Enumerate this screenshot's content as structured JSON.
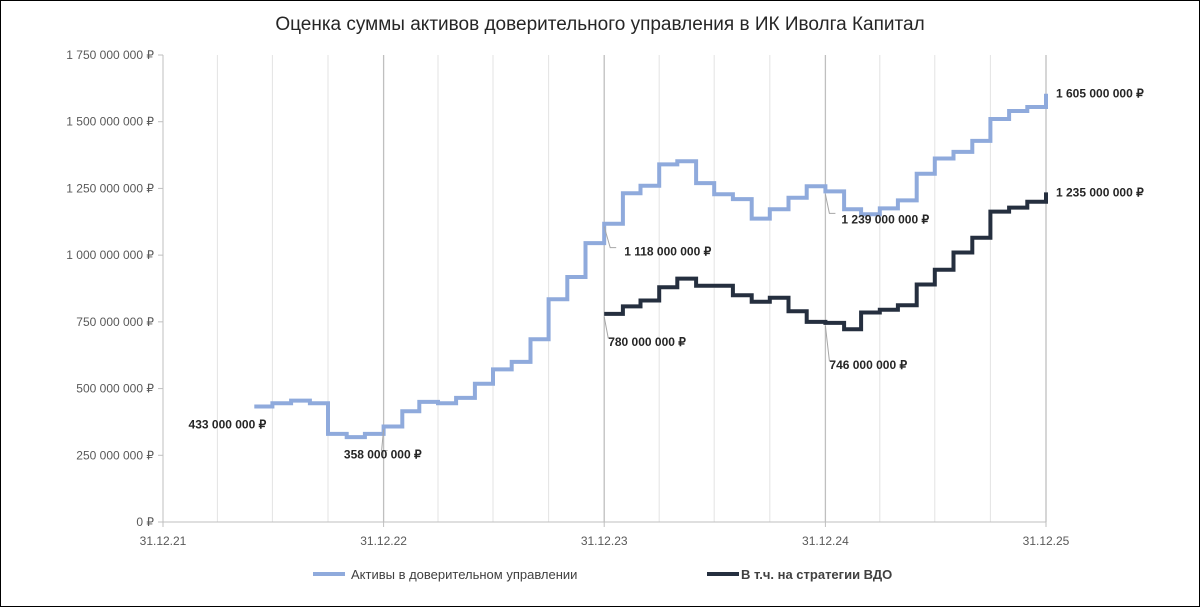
{
  "chart_data": {
    "type": "line",
    "step": true,
    "title": "Оценка суммы активов доверительного управления в ИК Иволга Капитал",
    "xlabel": "",
    "ylabel": "",
    "x_ticks": [
      "31.12.21",
      "31.12.22",
      "31.12.23",
      "31.12.24",
      "31.12.25"
    ],
    "x_range": [
      "2021-12-31",
      "2025-12-31"
    ],
    "y_ticks": [
      "0 ₽",
      "250 000 000 ₽",
      "500 000 000 ₽",
      "750 000 000 ₽",
      "1 000 000 000 ₽",
      "1 250 000 000 ₽",
      "1 500 000 000 ₽",
      "1 750 000 000 ₽"
    ],
    "ylim": [
      0,
      1750000000
    ],
    "grid": {
      "vertical": true,
      "horizontal": false
    },
    "legend_position": "bottom",
    "series": [
      {
        "name": "Активы в доверительном управлении",
        "color": "#8faadc",
        "points": [
          [
            "2022-05-31",
            433000000
          ],
          [
            "2022-06-30",
            445000000
          ],
          [
            "2022-07-31",
            455000000
          ],
          [
            "2022-08-31",
            445000000
          ],
          [
            "2022-09-30",
            330000000
          ],
          [
            "2022-10-31",
            318000000
          ],
          [
            "2022-11-30",
            330000000
          ],
          [
            "2022-12-31",
            358000000
          ],
          [
            "2023-01-31",
            415000000
          ],
          [
            "2023-02-28",
            450000000
          ],
          [
            "2023-03-31",
            445000000
          ],
          [
            "2023-04-30",
            465000000
          ],
          [
            "2023-05-31",
            518000000
          ],
          [
            "2023-06-30",
            572000000
          ],
          [
            "2023-07-31",
            600000000
          ],
          [
            "2023-08-31",
            685000000
          ],
          [
            "2023-09-30",
            835000000
          ],
          [
            "2023-10-31",
            918000000
          ],
          [
            "2023-11-30",
            1045000000
          ],
          [
            "2023-12-31",
            1118000000
          ],
          [
            "2024-01-31",
            1232000000
          ],
          [
            "2024-02-29",
            1260000000
          ],
          [
            "2024-03-31",
            1340000000
          ],
          [
            "2024-04-30",
            1352000000
          ],
          [
            "2024-05-31",
            1270000000
          ],
          [
            "2024-06-30",
            1228000000
          ],
          [
            "2024-07-31",
            1210000000
          ],
          [
            "2024-08-31",
            1137000000
          ],
          [
            "2024-09-30",
            1172000000
          ],
          [
            "2024-10-31",
            1215000000
          ],
          [
            "2024-11-30",
            1258000000
          ],
          [
            "2024-12-31",
            1239000000
          ],
          [
            "2025-01-31",
            1172000000
          ],
          [
            "2025-02-28",
            1153000000
          ],
          [
            "2025-03-31",
            1175000000
          ],
          [
            "2025-04-30",
            1205000000
          ],
          [
            "2025-05-31",
            1305000000
          ],
          [
            "2025-06-30",
            1362000000
          ],
          [
            "2025-07-31",
            1387000000
          ],
          [
            "2025-08-31",
            1428000000
          ],
          [
            "2025-09-30",
            1510000000
          ],
          [
            "2025-10-31",
            1540000000
          ],
          [
            "2025-11-30",
            1555000000
          ],
          [
            "2025-12-31",
            1605000000
          ]
        ]
      },
      {
        "name": "В т.ч. на стратегии ВДО",
        "color": "#252f3f",
        "points": [
          [
            "2023-12-31",
            780000000
          ],
          [
            "2024-01-31",
            808000000
          ],
          [
            "2024-02-29",
            830000000
          ],
          [
            "2024-03-31",
            880000000
          ],
          [
            "2024-04-30",
            912000000
          ],
          [
            "2024-05-31",
            885000000
          ],
          [
            "2024-06-30",
            885000000
          ],
          [
            "2024-07-31",
            850000000
          ],
          [
            "2024-08-31",
            825000000
          ],
          [
            "2024-09-30",
            840000000
          ],
          [
            "2024-10-31",
            790000000
          ],
          [
            "2024-11-30",
            750000000
          ],
          [
            "2024-12-31",
            746000000
          ],
          [
            "2025-01-31",
            722000000
          ],
          [
            "2025-02-28",
            785000000
          ],
          [
            "2025-03-31",
            795000000
          ],
          [
            "2025-04-30",
            812000000
          ],
          [
            "2025-05-31",
            890000000
          ],
          [
            "2025-06-30",
            945000000
          ],
          [
            "2025-07-31",
            1010000000
          ],
          [
            "2025-08-31",
            1065000000
          ],
          [
            "2025-09-30",
            1163000000
          ],
          [
            "2025-10-31",
            1178000000
          ],
          [
            "2025-11-30",
            1200000000
          ],
          [
            "2025-12-31",
            1235000000
          ]
        ]
      }
    ],
    "annotations": [
      {
        "series": 0,
        "date": "2022-05-31",
        "value": 433000000,
        "text": "433 000 000 ₽"
      },
      {
        "series": 0,
        "date": "2022-12-31",
        "value": 358000000,
        "text": "358 000 000 ₽"
      },
      {
        "series": 0,
        "date": "2023-12-31",
        "value": 1118000000,
        "text": "1 118 000 000 ₽"
      },
      {
        "series": 0,
        "date": "2024-12-31",
        "value": 1239000000,
        "text": "1 239 000 000 ₽"
      },
      {
        "series": 0,
        "date": "2025-12-31",
        "value": 1605000000,
        "text": "1 605 000 000 ₽"
      },
      {
        "series": 1,
        "date": "2023-12-31",
        "value": 780000000,
        "text": "780 000 000 ₽"
      },
      {
        "series": 1,
        "date": "2024-12-31",
        "value": 746000000,
        "text": "746 000 000 ₽"
      },
      {
        "series": 1,
        "date": "2025-12-31",
        "value": 1235000000,
        "text": "1 235 000 000 ₽"
      }
    ]
  }
}
